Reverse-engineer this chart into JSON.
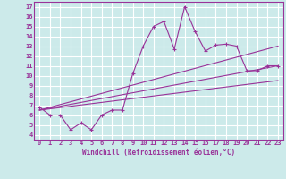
{
  "xlabel": "Windchill (Refroidissement éolien,°C)",
  "bg_color": "#cceaea",
  "grid_color": "#ffffff",
  "line_color": "#993399",
  "xlim": [
    -0.5,
    23.5
  ],
  "ylim": [
    3.5,
    17.5
  ],
  "xticks": [
    0,
    1,
    2,
    3,
    4,
    5,
    6,
    7,
    8,
    9,
    10,
    11,
    12,
    13,
    14,
    15,
    16,
    17,
    18,
    19,
    20,
    21,
    22,
    23
  ],
  "yticks": [
    4,
    5,
    6,
    7,
    8,
    9,
    10,
    11,
    12,
    13,
    14,
    15,
    16,
    17
  ],
  "line1_x": [
    0,
    1,
    2,
    3,
    4,
    5,
    6,
    7,
    8,
    9,
    10,
    11,
    12,
    13,
    14,
    15,
    16,
    17,
    18,
    19,
    20,
    21,
    22,
    23
  ],
  "line1_y": [
    6.8,
    6.0,
    6.0,
    4.5,
    5.2,
    4.5,
    6.0,
    6.5,
    6.5,
    10.2,
    13.0,
    15.0,
    15.5,
    12.7,
    17.0,
    14.5,
    12.5,
    13.1,
    13.2,
    13.0,
    10.5,
    10.5,
    11.0,
    11.0
  ],
  "line2_x": [
    0,
    23
  ],
  "line2_y": [
    6.5,
    13.0
  ],
  "line3_x": [
    0,
    23
  ],
  "line3_y": [
    6.5,
    11.0
  ],
  "line4_x": [
    0,
    23
  ],
  "line4_y": [
    6.5,
    9.5
  ]
}
